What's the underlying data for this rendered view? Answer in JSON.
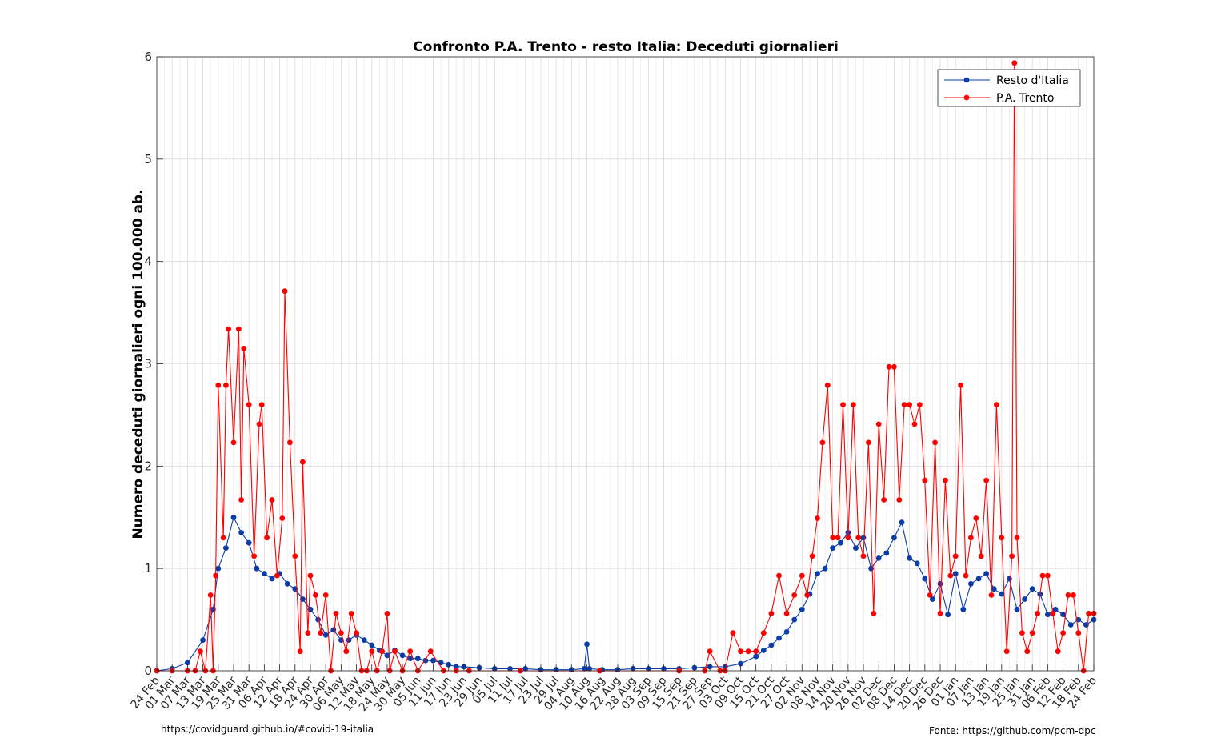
{
  "chart_data": {
    "type": "line",
    "title": "Confronto P.A. Trento - resto Italia: Deceduti giornalieri",
    "xlabel": "",
    "ylabel": "Numero deceduti giornalieri ogni 100.000 ab.",
    "ylim": [
      0,
      6
    ],
    "yticks": [
      0,
      1,
      2,
      3,
      4,
      5,
      6
    ],
    "xlim": [
      "2020-02-24",
      "2021-02-24"
    ],
    "xtick_labels": [
      "24 Feb",
      "01 Mar",
      "07 Mar",
      "13 Mar",
      "19 Mar",
      "25 Mar",
      "31 Mar",
      "06 Apr",
      "12 Apr",
      "18 Apr",
      "24 Apr",
      "30 Apr",
      "06 May",
      "12 May",
      "18 May",
      "24 May",
      "30 May",
      "05 Jun",
      "11 Jun",
      "17 Jun",
      "23 Jun",
      "29 Jun",
      "05 Jul",
      "11 Jul",
      "17 Jul",
      "23 Jul",
      "29 Jul",
      "04 Aug",
      "10 Aug",
      "16 Aug",
      "22 Aug",
      "28 Aug",
      "03 Sep",
      "09 Sep",
      "15 Sep",
      "21 Sep",
      "27 Sep",
      "03 Oct",
      "09 Oct",
      "15 Oct",
      "21 Oct",
      "27 Oct",
      "02 Nov",
      "08 Nov",
      "14 Nov",
      "20 Nov",
      "26 Nov",
      "02 Dec",
      "08 Dec",
      "14 Dec",
      "20 Dec",
      "26 Dec",
      "01 Jan",
      "07 Jan",
      "13 Jan",
      "19 Jan",
      "25 Jan",
      "31 Jan",
      "06 Feb",
      "12 Feb",
      "18 Feb",
      "24 Feb"
    ],
    "grid": true,
    "legend": "top-right",
    "series": [
      {
        "name": "Resto d'Italia",
        "color": "#0b3ca8",
        "x": [
          "2020-02-24",
          "2020-03-01",
          "2020-03-07",
          "2020-03-13",
          "2020-03-17",
          "2020-03-19",
          "2020-03-22",
          "2020-03-25",
          "2020-03-28",
          "2020-03-31",
          "2020-04-03",
          "2020-04-06",
          "2020-04-09",
          "2020-04-12",
          "2020-04-15",
          "2020-04-18",
          "2020-04-21",
          "2020-04-24",
          "2020-04-27",
          "2020-04-30",
          "2020-05-03",
          "2020-05-06",
          "2020-05-09",
          "2020-05-12",
          "2020-05-15",
          "2020-05-18",
          "2020-05-21",
          "2020-05-24",
          "2020-05-27",
          "2020-05-30",
          "2020-06-02",
          "2020-06-05",
          "2020-06-08",
          "2020-06-11",
          "2020-06-14",
          "2020-06-17",
          "2020-06-20",
          "2020-06-23",
          "2020-06-29",
          "2020-07-05",
          "2020-07-11",
          "2020-07-17",
          "2020-07-23",
          "2020-07-29",
          "2020-08-04",
          "2020-08-09",
          "2020-08-10",
          "2020-08-11",
          "2020-08-16",
          "2020-08-22",
          "2020-08-28",
          "2020-09-03",
          "2020-09-09",
          "2020-09-15",
          "2020-09-21",
          "2020-09-27",
          "2020-10-03",
          "2020-10-09",
          "2020-10-15",
          "2020-10-18",
          "2020-10-21",
          "2020-10-24",
          "2020-10-27",
          "2020-10-30",
          "2020-11-02",
          "2020-11-05",
          "2020-11-08",
          "2020-11-11",
          "2020-11-14",
          "2020-11-17",
          "2020-11-20",
          "2020-11-23",
          "2020-11-26",
          "2020-11-29",
          "2020-12-02",
          "2020-12-05",
          "2020-12-08",
          "2020-12-11",
          "2020-12-14",
          "2020-12-17",
          "2020-12-20",
          "2020-12-23",
          "2020-12-26",
          "2020-12-29",
          "2021-01-01",
          "2021-01-04",
          "2021-01-07",
          "2021-01-10",
          "2021-01-13",
          "2021-01-16",
          "2021-01-19",
          "2021-01-22",
          "2021-01-25",
          "2021-01-28",
          "2021-01-31",
          "2021-02-03",
          "2021-02-06",
          "2021-02-09",
          "2021-02-12",
          "2021-02-15",
          "2021-02-18",
          "2021-02-21",
          "2021-02-24"
        ],
        "values": [
          0.0,
          0.02,
          0.08,
          0.3,
          0.6,
          1.0,
          1.2,
          1.5,
          1.35,
          1.25,
          1.0,
          0.95,
          0.9,
          0.95,
          0.85,
          0.8,
          0.7,
          0.6,
          0.5,
          0.35,
          0.4,
          0.3,
          0.3,
          0.35,
          0.3,
          0.25,
          0.2,
          0.15,
          0.2,
          0.15,
          0.12,
          0.12,
          0.1,
          0.1,
          0.08,
          0.06,
          0.04,
          0.04,
          0.03,
          0.02,
          0.02,
          0.02,
          0.01,
          0.01,
          0.01,
          0.02,
          0.26,
          0.02,
          0.01,
          0.01,
          0.02,
          0.02,
          0.02,
          0.02,
          0.03,
          0.04,
          0.04,
          0.07,
          0.14,
          0.2,
          0.25,
          0.32,
          0.38,
          0.5,
          0.6,
          0.75,
          0.95,
          1.0,
          1.2,
          1.25,
          1.35,
          1.2,
          1.3,
          1.0,
          1.1,
          1.15,
          1.3,
          1.45,
          1.1,
          1.05,
          0.9,
          0.7,
          0.85,
          0.55,
          0.95,
          0.6,
          0.85,
          0.9,
          0.95,
          0.8,
          0.75,
          0.9,
          0.6,
          0.7,
          0.8,
          0.75,
          0.55,
          0.6,
          0.55,
          0.45,
          0.5,
          0.45,
          0.5
        ]
      },
      {
        "name": "P.A. Trento",
        "color": "#ff0000",
        "x": [
          "2020-02-24",
          "2020-03-01",
          "2020-03-07",
          "2020-03-10",
          "2020-03-12",
          "2020-03-14",
          "2020-03-16",
          "2020-03-17",
          "2020-03-18",
          "2020-03-19",
          "2020-03-21",
          "2020-03-22",
          "2020-03-23",
          "2020-03-25",
          "2020-03-27",
          "2020-03-28",
          "2020-03-29",
          "2020-03-31",
          "2020-04-02",
          "2020-04-04",
          "2020-04-05",
          "2020-04-07",
          "2020-04-09",
          "2020-04-11",
          "2020-04-13",
          "2020-04-14",
          "2020-04-16",
          "2020-04-18",
          "2020-04-20",
          "2020-04-21",
          "2020-04-23",
          "2020-04-24",
          "2020-04-26",
          "2020-04-28",
          "2020-04-30",
          "2020-05-02",
          "2020-05-04",
          "2020-05-06",
          "2020-05-08",
          "2020-05-10",
          "2020-05-12",
          "2020-05-14",
          "2020-05-16",
          "2020-05-18",
          "2020-05-20",
          "2020-05-22",
          "2020-05-24",
          "2020-05-25",
          "2020-05-27",
          "2020-05-30",
          "2020-06-02",
          "2020-06-05",
          "2020-06-10",
          "2020-06-15",
          "2020-06-20",
          "2020-06-25",
          "2020-07-15",
          "2020-08-15",
          "2020-09-15",
          "2020-09-25",
          "2020-09-27",
          "2020-10-01",
          "2020-10-03",
          "2020-10-06",
          "2020-10-09",
          "2020-10-12",
          "2020-10-15",
          "2020-10-18",
          "2020-10-21",
          "2020-10-24",
          "2020-10-27",
          "2020-10-30",
          "2020-11-02",
          "2020-11-04",
          "2020-11-06",
          "2020-11-08",
          "2020-11-10",
          "2020-11-12",
          "2020-11-14",
          "2020-11-16",
          "2020-11-18",
          "2020-11-20",
          "2020-11-22",
          "2020-11-24",
          "2020-11-26",
          "2020-11-28",
          "2020-11-30",
          "2020-12-02",
          "2020-12-04",
          "2020-12-06",
          "2020-12-08",
          "2020-12-10",
          "2020-12-12",
          "2020-12-14",
          "2020-12-16",
          "2020-12-18",
          "2020-12-20",
          "2020-12-22",
          "2020-12-24",
          "2020-12-26",
          "2020-12-28",
          "2020-12-30",
          "2021-01-01",
          "2021-01-03",
          "2021-01-05",
          "2021-01-07",
          "2021-01-09",
          "2021-01-11",
          "2021-01-13",
          "2021-01-15",
          "2021-01-17",
          "2021-01-19",
          "2021-01-21",
          "2021-01-23",
          "2021-01-24",
          "2021-01-25",
          "2021-01-27",
          "2021-01-29",
          "2021-01-31",
          "2021-02-02",
          "2021-02-04",
          "2021-02-06",
          "2021-02-08",
          "2021-02-10",
          "2021-02-12",
          "2021-02-14",
          "2021-02-16",
          "2021-02-18",
          "2021-02-20",
          "2021-02-22",
          "2021-02-24"
        ],
        "values": [
          0.0,
          0.0,
          0.0,
          0.0,
          0.19,
          0.0,
          0.74,
          0.0,
          0.93,
          2.79,
          1.3,
          2.79,
          3.34,
          2.23,
          3.34,
          1.67,
          3.15,
          2.6,
          1.12,
          2.41,
          2.6,
          1.3,
          1.67,
          0.93,
          1.49,
          3.71,
          2.23,
          1.12,
          0.19,
          2.04,
          0.37,
          0.93,
          0.74,
          0.37,
          0.74,
          0.0,
          0.56,
          0.37,
          0.19,
          0.56,
          0.37,
          0.0,
          0.0,
          0.19,
          0.0,
          0.19,
          0.56,
          0.0,
          0.19,
          0.0,
          0.19,
          0.0,
          0.19,
          0.0,
          0.0,
          0.0,
          0.0,
          0.0,
          0.0,
          0.0,
          0.19,
          0.0,
          0.0,
          0.37,
          0.19,
          0.19,
          0.19,
          0.37,
          0.56,
          0.93,
          0.56,
          0.74,
          0.93,
          0.74,
          1.12,
          1.49,
          2.23,
          2.79,
          1.3,
          1.3,
          2.6,
          1.3,
          2.6,
          1.3,
          1.12,
          2.23,
          0.56,
          2.41,
          1.67,
          2.97,
          2.97,
          1.67,
          2.6,
          2.6,
          2.41,
          2.6,
          1.86,
          0.74,
          2.23,
          0.56,
          1.86,
          0.93,
          1.12,
          2.79,
          0.93,
          1.3,
          1.49,
          1.12,
          1.86,
          0.74,
          2.6,
          1.3,
          0.19,
          1.12,
          5.94,
          1.3,
          0.37,
          0.19,
          0.37,
          0.56,
          0.93,
          0.93,
          0.56,
          0.19,
          0.37,
          0.74,
          0.74,
          0.37,
          0.0,
          0.56,
          0.56
        ]
      }
    ]
  },
  "footer": {
    "left": "https://covidguard.github.io/#covid-19-italia",
    "right": "Fonte: https://github.com/pcm-dpc"
  }
}
